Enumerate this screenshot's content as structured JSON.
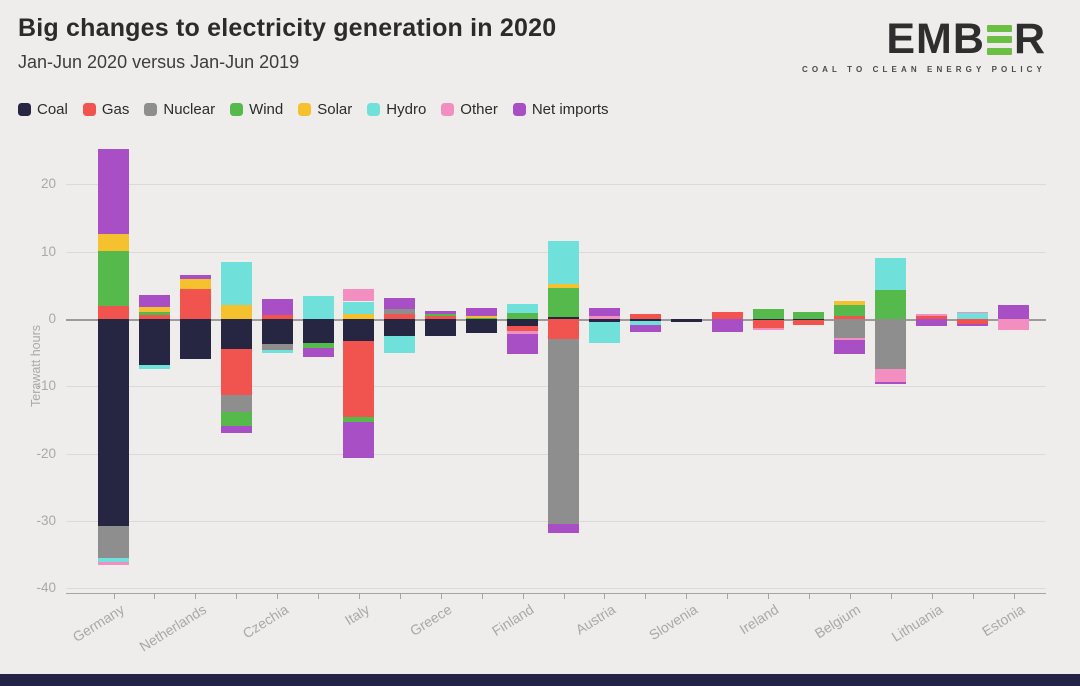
{
  "header": {
    "title": "Big changes to electricity generation in 2020",
    "subtitle": "Jan-Jun 2020 versus Jan-Jun 2019"
  },
  "logo": {
    "text_before": "EMB",
    "text_after": "R",
    "tagline": "COAL TO CLEAN ENERGY POLICY",
    "accent_color": "#6cbe45",
    "text_color": "#2e2e2e"
  },
  "colors": {
    "background": "#efedeb",
    "gridline": "#dcdad6",
    "zero_line": "#9b9b9b",
    "axis_text": "#a9a9a9",
    "footer_bar": "#232345"
  },
  "chart_data": {
    "type": "bar",
    "variant": "diverging-stacked",
    "title": "Big changes to electricity generation in 2020",
    "subtitle": "Jan-Jun 2020 versus Jan-Jun 2019",
    "ylabel": "Terawatt hours",
    "xlabel": "",
    "yticks": [
      20,
      10,
      0,
      -10,
      -20,
      -30,
      -40
    ],
    "ylim": [
      -40.7,
      26.3
    ],
    "grid": true,
    "legend_position": "top",
    "label_every_other_bar": true,
    "series_order": [
      "Coal",
      "Gas",
      "Nuclear",
      "Wind",
      "Solar",
      "Hydro",
      "Other",
      "Net imports"
    ],
    "series_colors": {
      "Coal": "#262642",
      "Gas": "#f1534e",
      "Nuclear": "#8e8e8e",
      "Wind": "#56b94c",
      "Solar": "#f6c12e",
      "Hydro": "#70e1da",
      "Other": "#f28fc0",
      "Net imports": "#a84fc5"
    },
    "bars": [
      {
        "label": "Germany",
        "values": {
          "Gas": 2.0,
          "Wind": 8.1,
          "Solar": 2.5,
          "Net imports": 12.7,
          "Coal": -30.8,
          "Nuclear": -4.7,
          "Hydro": -0.6,
          "Other": -0.4
        }
      },
      {
        "label": "",
        "values": {
          "Gas": 0.6,
          "Wind": 0.4,
          "Solar": 0.8,
          "Net imports": 1.8,
          "Coal": -6.9,
          "Hydro": -0.5
        }
      },
      {
        "label": "Netherlands",
        "values": {
          "Gas": 4.5,
          "Solar": 1.4,
          "Net imports": 0.6,
          "Coal": -5.9
        }
      },
      {
        "label": "",
        "values": {
          "Solar": 2.1,
          "Hydro": 6.3,
          "Coal": -4.5,
          "Gas": -6.8,
          "Nuclear": -2.5,
          "Wind": -2.1,
          "Net imports": -1.0
        }
      },
      {
        "label": "Czechia",
        "values": {
          "Gas": 0.6,
          "Net imports": 2.4,
          "Coal": -3.7,
          "Nuclear": -0.9,
          "Hydro": -0.5
        }
      },
      {
        "label": "",
        "values": {
          "Hydro": 3.4,
          "Coal": -3.6,
          "Wind": -0.7,
          "Net imports": -1.3
        }
      },
      {
        "label": "Italy",
        "values": {
          "Solar": 0.7,
          "Hydro": 1.9,
          "Other": 1.8,
          "Coal": -3.3,
          "Gas": -11.3,
          "Wind": -0.7,
          "Net imports": -5.3
        }
      },
      {
        "label": "",
        "values": {
          "Gas": 0.8,
          "Nuclear": 0.7,
          "Net imports": 1.6,
          "Coal": -2.6,
          "Hydro": -2.4
        }
      },
      {
        "label": "Greece",
        "values": {
          "Gas": 0.4,
          "Wind": 0.3,
          "Net imports": 0.5,
          "Coal": -2.6
        }
      },
      {
        "label": "",
        "values": {
          "Wind": 0.2,
          "Solar": 0.2,
          "Net imports": 1.3,
          "Coal": -2.1
        }
      },
      {
        "label": "Finland",
        "values": {
          "Wind": 0.9,
          "Hydro": 1.4,
          "Coal": -1.1,
          "Gas": -0.7,
          "Other": -0.5,
          "Net imports": -2.9
        }
      },
      {
        "label": "",
        "values": {
          "Coal": 0.3,
          "Wind": 4.3,
          "Solar": 0.6,
          "Hydro": 6.4,
          "Gas": -3.0,
          "Nuclear": -27.5,
          "Net imports": -1.3
        }
      },
      {
        "label": "Austria",
        "values": {
          "Other": 0.4,
          "Net imports": 1.3,
          "Coal": -0.4,
          "Hydro": -3.2
        }
      },
      {
        "label": "",
        "values": {
          "Gas": 0.7,
          "Coal": -0.3,
          "Hydro": -0.6,
          "Net imports": -1.0
        }
      },
      {
        "label": "Slovenia",
        "values": {
          "Coal": -0.5
        }
      },
      {
        "label": "",
        "values": {
          "Gas": 1.0,
          "Net imports": -1.9
        }
      },
      {
        "label": "Ireland",
        "values": {
          "Wind": 1.5,
          "Coal": -0.2,
          "Gas": -1.2,
          "Other": -0.3
        }
      },
      {
        "label": "",
        "values": {
          "Wind": 1.0,
          "Coal": -0.2,
          "Gas": -0.7
        }
      },
      {
        "label": "Belgium",
        "values": {
          "Gas": 0.5,
          "Wind": 1.6,
          "Solar": 0.6,
          "Nuclear": -2.8,
          "Other": -0.3,
          "Net imports": -2.1
        }
      },
      {
        "label": "",
        "values": {
          "Wind": 4.3,
          "Hydro": 4.7,
          "Nuclear": -7.4,
          "Other": -1.9,
          "Net imports": -0.4
        }
      },
      {
        "label": "Lithuania",
        "values": {
          "Gas": 0.5,
          "Other": 0.2,
          "Net imports": -1.0
        }
      },
      {
        "label": "",
        "values": {
          "Hydro": 0.9,
          "Other": 0.2,
          "Gas": -0.8,
          "Net imports": -0.3
        }
      },
      {
        "label": "Estonia",
        "values": {
          "Net imports": 2.1,
          "Other": -1.7
        }
      }
    ]
  }
}
